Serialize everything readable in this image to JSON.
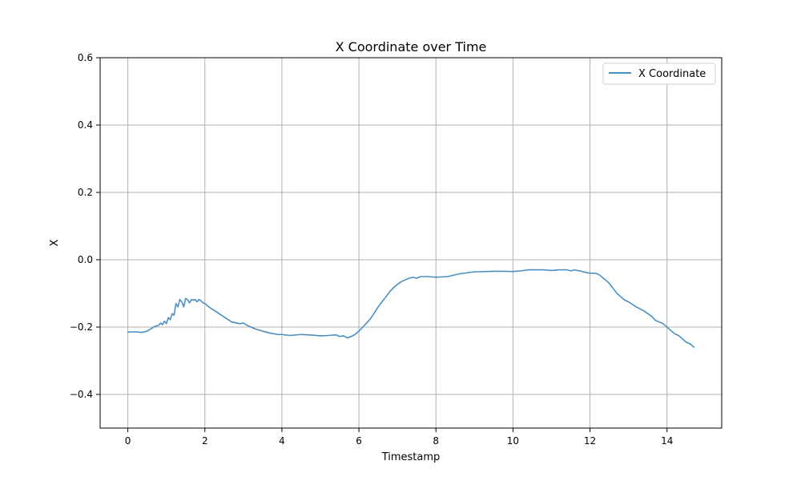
{
  "chart_data": {
    "type": "line",
    "title": "X Coordinate over Time",
    "xlabel": "Timestamp",
    "ylabel": "X",
    "xlim": [
      -0.72,
      15.42
    ],
    "ylim": [
      -0.5,
      0.6
    ],
    "x_ticks": [
      0,
      2,
      4,
      6,
      8,
      10,
      12,
      14
    ],
    "x_tick_labels": [
      "0",
      "2",
      "4",
      "6",
      "8",
      "10",
      "12",
      "14"
    ],
    "y_ticks": [
      -0.4,
      -0.2,
      0.0,
      0.2,
      0.4,
      0.6
    ],
    "y_tick_labels": [
      "−0.4",
      "−0.2",
      "0.0",
      "0.2",
      "0.4",
      "0.6"
    ],
    "grid": true,
    "legend": {
      "position": "top-right",
      "entries": [
        "X Coordinate"
      ]
    },
    "series": [
      {
        "name": "X Coordinate",
        "color": "#4a90c4",
        "x": [
          0.0,
          0.2,
          0.35,
          0.5,
          0.6,
          0.7,
          0.8,
          0.85,
          0.9,
          0.95,
          1.0,
          1.05,
          1.1,
          1.15,
          1.2,
          1.25,
          1.3,
          1.35,
          1.4,
          1.45,
          1.5,
          1.55,
          1.6,
          1.65,
          1.7,
          1.75,
          1.8,
          1.85,
          1.9,
          1.95,
          2.0,
          2.1,
          2.3,
          2.5,
          2.7,
          2.9,
          3.0,
          3.1,
          3.3,
          3.5,
          3.7,
          3.9,
          4.0,
          4.2,
          4.5,
          4.8,
          5.0,
          5.2,
          5.4,
          5.5,
          5.6,
          5.7,
          5.8,
          5.9,
          6.0,
          6.1,
          6.2,
          6.3,
          6.4,
          6.5,
          6.6,
          6.7,
          6.8,
          6.9,
          7.0,
          7.1,
          7.2,
          7.3,
          7.4,
          7.5,
          7.6,
          7.8,
          8.0,
          8.3,
          8.6,
          9.0,
          9.3,
          9.6,
          10.0,
          10.2,
          10.4,
          10.6,
          10.8,
          11.0,
          11.2,
          11.4,
          11.5,
          11.6,
          11.8,
          11.9,
          12.0,
          12.1,
          12.2,
          12.3,
          12.4,
          12.5,
          12.6,
          12.7,
          12.8,
          12.9,
          13.0,
          13.2,
          13.4,
          13.5,
          13.6,
          13.7,
          13.8,
          13.9,
          14.0,
          14.1,
          14.2,
          14.3,
          14.4,
          14.5,
          14.6,
          14.7
        ],
        "y": [
          -0.215,
          -0.214,
          -0.216,
          -0.212,
          -0.205,
          -0.198,
          -0.195,
          -0.188,
          -0.193,
          -0.182,
          -0.19,
          -0.172,
          -0.178,
          -0.16,
          -0.165,
          -0.13,
          -0.14,
          -0.118,
          -0.125,
          -0.14,
          -0.115,
          -0.118,
          -0.128,
          -0.118,
          -0.12,
          -0.118,
          -0.125,
          -0.118,
          -0.122,
          -0.128,
          -0.13,
          -0.14,
          -0.155,
          -0.17,
          -0.185,
          -0.19,
          -0.188,
          -0.195,
          -0.205,
          -0.212,
          -0.218,
          -0.222,
          -0.222,
          -0.225,
          -0.222,
          -0.224,
          -0.226,
          -0.225,
          -0.223,
          -0.228,
          -0.226,
          -0.232,
          -0.228,
          -0.222,
          -0.212,
          -0.2,
          -0.188,
          -0.175,
          -0.158,
          -0.14,
          -0.125,
          -0.11,
          -0.095,
          -0.083,
          -0.073,
          -0.065,
          -0.06,
          -0.055,
          -0.052,
          -0.055,
          -0.05,
          -0.05,
          -0.052,
          -0.05,
          -0.042,
          -0.036,
          -0.035,
          -0.034,
          -0.035,
          -0.033,
          -0.03,
          -0.03,
          -0.03,
          -0.032,
          -0.03,
          -0.03,
          -0.033,
          -0.03,
          -0.035,
          -0.038,
          -0.04,
          -0.04,
          -0.042,
          -0.05,
          -0.06,
          -0.07,
          -0.085,
          -0.1,
          -0.11,
          -0.12,
          -0.125,
          -0.14,
          -0.152,
          -0.16,
          -0.168,
          -0.18,
          -0.185,
          -0.19,
          -0.2,
          -0.21,
          -0.22,
          -0.225,
          -0.235,
          -0.245,
          -0.25,
          -0.26
        ]
      }
    ]
  }
}
